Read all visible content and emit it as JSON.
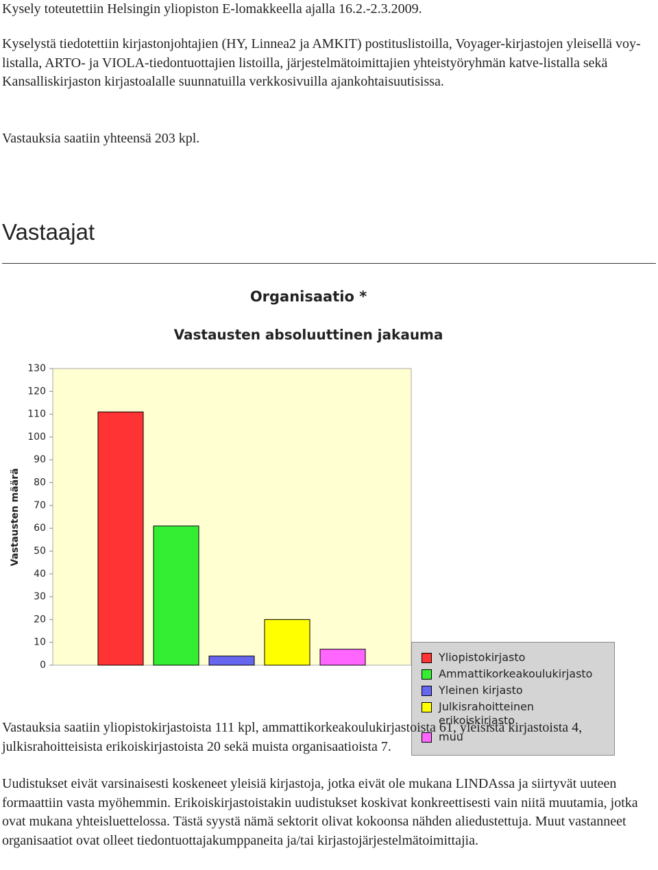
{
  "intro": [
    "Kysely toteutettiin Helsingin yliopiston E-lomakkeella ajalla 16.2.-2.3.2009.",
    "Kyselystä tiedotettiin kirjastonjohtajien (HY, Linnea2 ja AMKIT) postituslistoilla, Voyager-kirjastojen yleisellä voy-listalla, ARTO- ja VIOLA-tiedontuottajien listoilla, järjestelmätoimittajien yhteistyöryhmän katve-listalla sekä Kansalliskirjaston kirjastoalalle suunnatuilla verkkosivuilla ajankohtaisuutisissa.",
    "Vastauksia saatiin yhteensä 203 kpl."
  ],
  "heading": "Vastaajat",
  "chart_data": {
    "type": "bar",
    "title": "Organisaatio *",
    "subtitle": "Vastausten absoluuttinen jakauma",
    "y_label": "Vastausten määrä",
    "categories": [
      "Yliopistokirjasto",
      "Ammattikorkeakoulukirjasto",
      "Yleinen kirjasto",
      "Julkisrahoitteinen erikoiskirjasto",
      "muu"
    ],
    "values": [
      111,
      61,
      4,
      20,
      7
    ],
    "colors": [
      "#ff3333",
      "#33ee33",
      "#6666ee",
      "#ffff00",
      "#ff66ff"
    ],
    "ylim": [
      0,
      130
    ],
    "yticks": [
      0,
      10,
      20,
      30,
      40,
      50,
      60,
      70,
      80,
      90,
      100,
      110,
      120,
      130
    ],
    "legend": "upper right",
    "grid": false
  },
  "outro": [
    "Vastauksia saatiin yliopistokirjastoista 111 kpl, ammattikorkeakoulukirjastoista 61, yleisistä kirjastoista 4, julkisrahoitteisista erikoiskirjastoista 20 sekä muista organisaatioista 7.",
    "Uudistukset eivät varsinaisesti koskeneet yleisiä kirjastoja, jotka eivät ole mukana LINDAssa ja siirtyvät uuteen formaattiin vasta myöhemmin. Erikoiskirjastoistakin uudistukset koskivat konkreettisesti vain niitä muutamia, jotka ovat mukana yhteisluettelossa. Tästä syystä nämä sektorit olivat kokoonsa nähden aliedustettuja. Muut vastanneet organisaatiot ovat olleet tiedontuottajakumppaneita ja/tai kirjastojärjestelmätoimittajia."
  ]
}
